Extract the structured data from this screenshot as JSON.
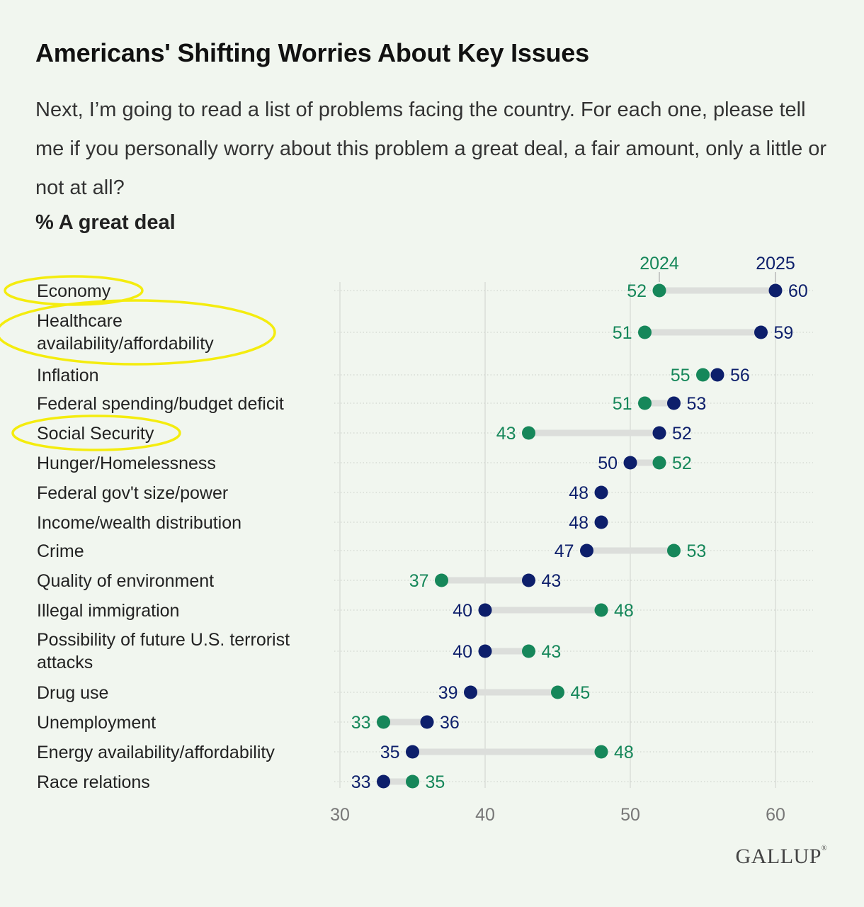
{
  "header": {
    "title": "Americans' Shifting Worries About Key Issues",
    "subtitle": "Next, I’m going to read a list of problems facing the country. For each one, please tell me if you personally worry about this problem a great deal, a fair amount, only a little or not at all?",
    "measure_label": "% A great deal"
  },
  "logo": {
    "text": "GALLUP",
    "mark": "®"
  },
  "colors": {
    "series_2024": "#16875a",
    "series_2025": "#0d1f6b",
    "connector": "#dcdedb",
    "gridline": "#d4d8d2",
    "highlight": "#f4ec0e"
  },
  "chart_data": {
    "type": "dot-plot",
    "xlim": [
      30,
      62
    ],
    "xticks": [
      30,
      40,
      50,
      60
    ],
    "grid": true,
    "legend": "top-right",
    "series": [
      {
        "name": "2024",
        "key": "y2024",
        "color": "#16875a"
      },
      {
        "name": "2025",
        "key": "y2025",
        "color": "#0d1f6b"
      }
    ],
    "categories": [
      {
        "label": "Economy",
        "y2024": 52,
        "y2025": 60,
        "highlighted": true
      },
      {
        "label": "Healthcare availability/affordability",
        "y2024": 51,
        "y2025": 59,
        "highlighted": true
      },
      {
        "label": "Inflation",
        "y2024": 55,
        "y2025": 56
      },
      {
        "label": "Federal spending/budget deficit",
        "y2024": 51,
        "y2025": 53
      },
      {
        "label": "Social Security",
        "y2024": 43,
        "y2025": 52,
        "highlighted": true
      },
      {
        "label": "Hunger/Homelessness",
        "y2024": 52,
        "y2025": 50
      },
      {
        "label": "Federal gov't size/power",
        "y2024": null,
        "y2025": 48
      },
      {
        "label": "Income/wealth distribution",
        "y2024": null,
        "y2025": 48
      },
      {
        "label": "Crime",
        "y2024": 53,
        "y2025": 47
      },
      {
        "label": "Quality of environment",
        "y2024": 37,
        "y2025": 43
      },
      {
        "label": "Illegal immigration",
        "y2024": 48,
        "y2025": 40
      },
      {
        "label": "Possibility of future U.S. terrorist attacks",
        "y2024": 43,
        "y2025": 40
      },
      {
        "label": "Drug use",
        "y2024": 45,
        "y2025": 39
      },
      {
        "label": "Unemployment",
        "y2024": 33,
        "y2025": 36
      },
      {
        "label": "Energy availability/affordability",
        "y2024": 48,
        "y2025": 35
      },
      {
        "label": "Race relations",
        "y2024": 35,
        "y2025": 33
      }
    ]
  }
}
